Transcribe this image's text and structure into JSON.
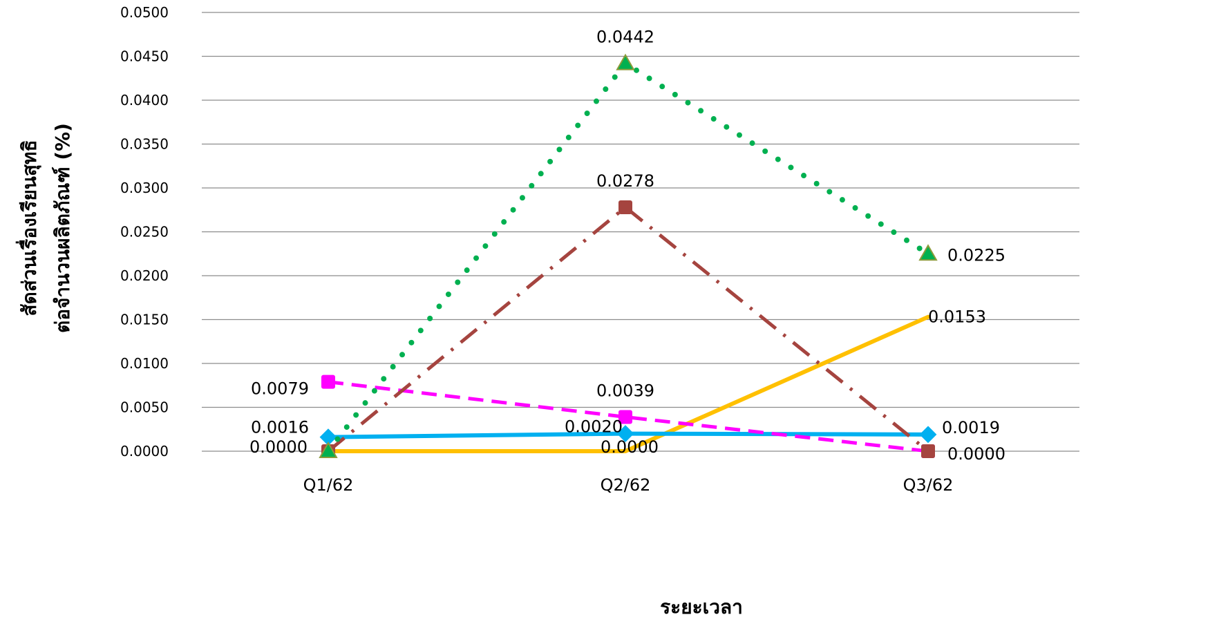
{
  "chart_data": {
    "type": "line",
    "title": "",
    "xlabel": "ระยะเวลา",
    "ylabel_lines": [
      "สัดส่วนเรื่องเรียนสุทธิ",
      "ต่อจำนวนผลิตภัณฑ์ (%)"
    ],
    "categories": [
      "Q1/62",
      "Q2/62",
      "Q3/62"
    ],
    "ylim": [
      0,
      0.05
    ],
    "yticks": [
      "0.0000",
      "0.0050",
      "0.0100",
      "0.0150",
      "0.0200",
      "0.0250",
      "0.0300",
      "0.0350",
      "0.0400",
      "0.0450",
      "0.0500"
    ],
    "grid": true,
    "legend": "none",
    "series": [
      {
        "color": "#00B050",
        "style": "dotted",
        "marker": "triangle",
        "values": [
          0.0,
          0.0442,
          0.0225
        ],
        "labels": [
          "",
          "0.0442",
          "0.0225"
        ]
      },
      {
        "color": "#A5443F",
        "style": "dash-dot",
        "marker": "square",
        "values": [
          0.0,
          0.0278,
          0.0
        ],
        "labels": [
          "",
          "0.0278",
          ""
        ]
      },
      {
        "color": "#FF00FF",
        "style": "dashed",
        "marker": "square",
        "values": [
          0.0079,
          0.0039,
          0.0
        ],
        "labels": [
          "0.0079",
          "0.0039",
          "0.0000"
        ]
      },
      {
        "color": "#00B0F0",
        "style": "solid",
        "marker": "diamond",
        "values": [
          0.0016,
          0.002,
          0.0019
        ],
        "labels": [
          "0.0016",
          "0.0020",
          "0.0019"
        ]
      },
      {
        "color": "#FFC000",
        "style": "solid",
        "marker": "none",
        "values": [
          0.0,
          0.0,
          0.0153
        ],
        "labels": [
          "0.0000",
          "0.0000",
          "0.0153"
        ]
      }
    ]
  }
}
